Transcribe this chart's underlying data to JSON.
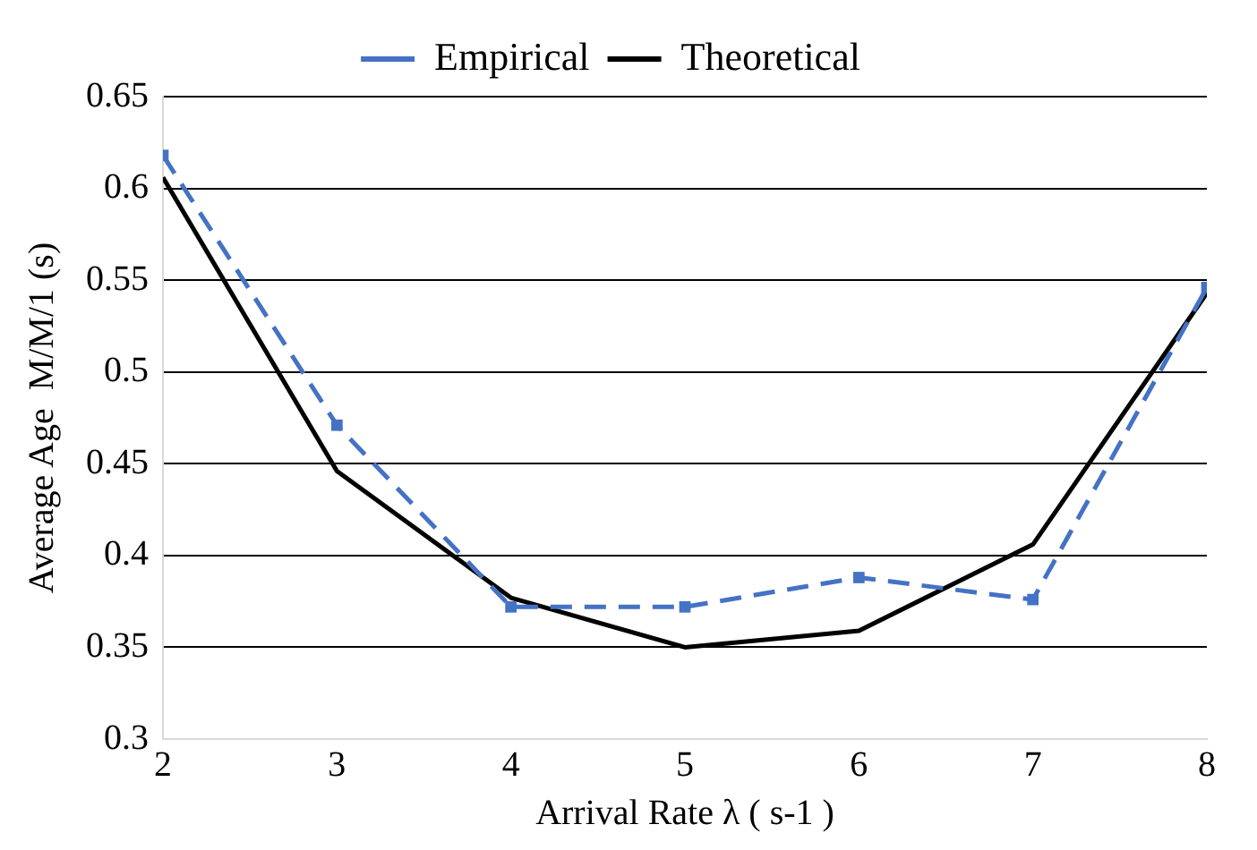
{
  "chart_data": {
    "type": "line",
    "xlabel": "Arrival Rate λ ( s-1 )",
    "ylabel": "Average Age  M/M/1 (s)",
    "x": [
      2,
      3,
      4,
      5,
      6,
      7,
      8
    ],
    "series": [
      {
        "name": "Empirical",
        "color": "#4472c4",
        "values": [
          0.618,
          0.471,
          0.372,
          0.372,
          0.388,
          0.376,
          0.546
        ],
        "marker": "square",
        "line_style": "dashed"
      },
      {
        "name": "Theoretical",
        "color": "#000000",
        "values": [
          0.606,
          0.446,
          0.377,
          0.35,
          0.359,
          0.406,
          0.543
        ],
        "marker": "none",
        "line_style": "solid"
      }
    ],
    "xlim": [
      2,
      8
    ],
    "xticks": [
      2,
      3,
      4,
      5,
      6,
      7,
      8
    ],
    "ylim": [
      0.3,
      0.65
    ],
    "yticks": [
      0.3,
      0.35,
      0.4,
      0.45,
      0.5,
      0.55,
      0.6,
      0.65
    ],
    "grid": "y",
    "legend": "top"
  }
}
